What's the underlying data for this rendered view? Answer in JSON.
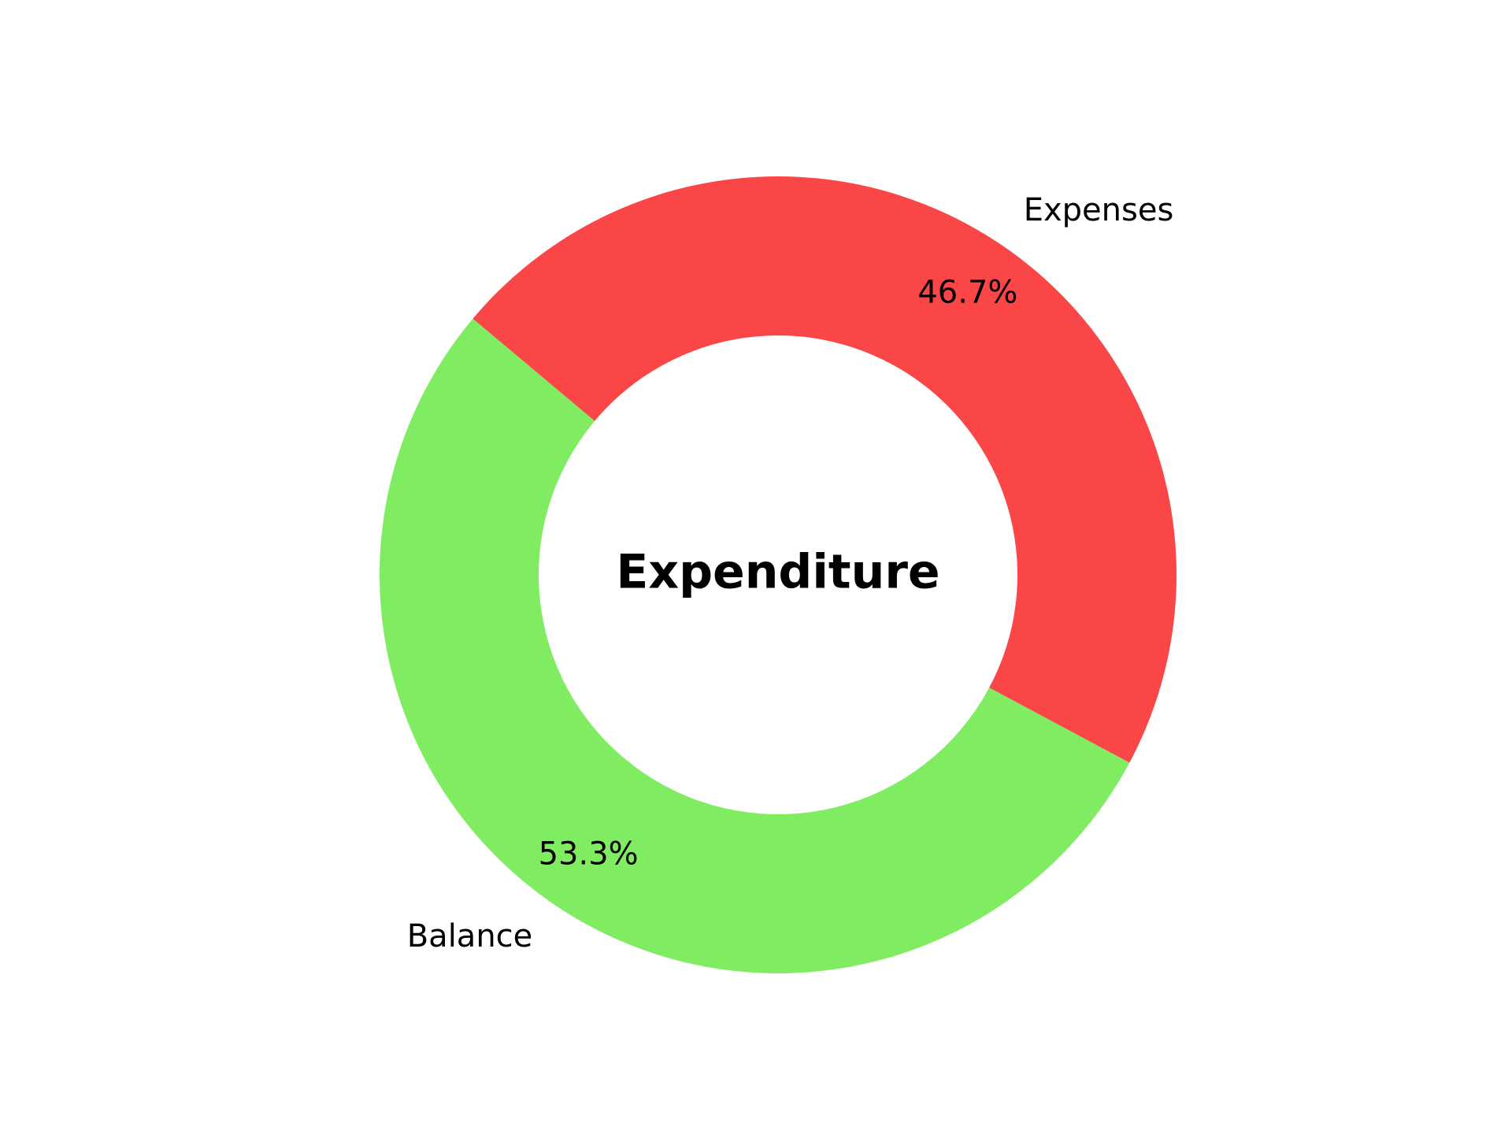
{
  "chart_data": {
    "type": "pie",
    "variant": "donut",
    "center_text": "Expenditure",
    "slices": [
      {
        "label": "Expenses",
        "value": 46.7,
        "pct_label": "46.7%",
        "color": "#fa4647"
      },
      {
        "label": "Balance",
        "value": 53.3,
        "pct_label": "53.3%",
        "color": "#80ec62"
      }
    ],
    "legend": "none"
  }
}
